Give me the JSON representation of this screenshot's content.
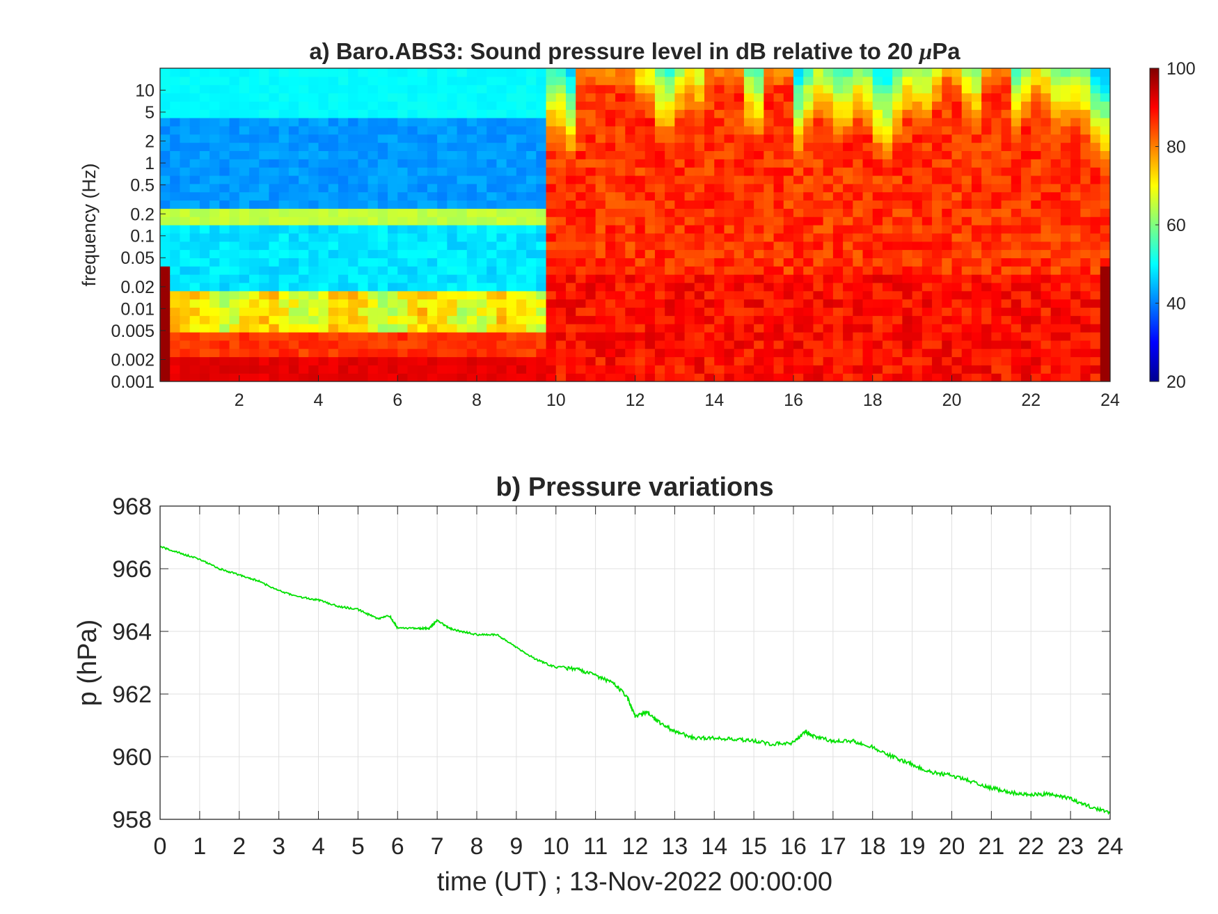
{
  "chart_data": [
    {
      "type": "heatmap",
      "title_prefix": "a) Baro.ABS3: Sound pressure level in dB relative to 20 ",
      "title_mu": "μ",
      "title_suffix": "Pa",
      "ylabel": "frequency (Hz)",
      "xlabel": "",
      "x_range": [
        0,
        24
      ],
      "y_scale": "log",
      "y_range": [
        0.001,
        20
      ],
      "x_ticks": [
        "2",
        "4",
        "6",
        "8",
        "10",
        "12",
        "14",
        "16",
        "18",
        "20",
        "22",
        "24"
      ],
      "x_tick_values": [
        2,
        4,
        6,
        8,
        10,
        12,
        14,
        16,
        18,
        20,
        22,
        24
      ],
      "y_ticks": [
        "10",
        "5",
        "2",
        "1",
        "0.5",
        "0.2",
        "0.1",
        "0.05",
        "0.02",
        "0.01",
        "0.005",
        "0.002",
        "0.001"
      ],
      "y_tick_values": [
        10,
        5,
        2,
        1,
        0.5,
        0.2,
        0.1,
        0.05,
        0.02,
        0.01,
        0.005,
        0.002,
        0.001
      ],
      "colorbar": {
        "range": [
          20,
          100
        ],
        "ticks": [
          "100",
          "80",
          "60",
          "40",
          "20"
        ],
        "tick_values": [
          100,
          80,
          60,
          40,
          20
        ],
        "colormap": "jet"
      },
      "pattern_summary": {
        "quiet_period_hours": [
          0,
          9.8
        ],
        "quiet_low_freq_band_db": 82,
        "quiet_mid_band_db": 52,
        "quiet_microbarom_band_hz": [
          0.15,
          0.25
        ],
        "quiet_microbarom_db": 65,
        "quiet_high_freq_db": 50,
        "windy_period_hours": [
          9.8,
          24
        ],
        "windy_level_db": 88
      }
    },
    {
      "type": "line",
      "title": "b) Pressure variations",
      "xlabel": "time (UT) ; 13-Nov-2022 00:00:00",
      "ylabel": "p (hPa)",
      "x_range": [
        0,
        24
      ],
      "ylim": [
        958,
        968
      ],
      "grid": true,
      "x_ticks": [
        "0",
        "1",
        "2",
        "3",
        "4",
        "5",
        "6",
        "7",
        "8",
        "9",
        "10",
        "11",
        "12",
        "13",
        "14",
        "15",
        "16",
        "17",
        "18",
        "19",
        "20",
        "21",
        "22",
        "23",
        "24"
      ],
      "y_ticks": [
        "968",
        "966",
        "964",
        "962",
        "960",
        "958"
      ],
      "y_tick_values": [
        968,
        966,
        964,
        962,
        960,
        958
      ],
      "line_color": "#00e000",
      "series": [
        {
          "x": [
            0,
            0.5,
            1,
            1.5,
            2,
            2.5,
            3,
            3.5,
            4,
            4.5,
            5,
            5.5,
            5.8,
            6,
            6.5,
            6.8,
            7,
            7.3,
            7.6,
            8,
            8.5,
            9,
            9.5,
            10,
            10.5,
            11,
            11.5,
            11.8,
            12,
            12.3,
            12.6,
            13,
            13.5,
            14,
            14.5,
            15,
            15.5,
            16,
            16.3,
            16.5,
            17,
            17.5,
            18,
            18.5,
            19,
            19.5,
            20,
            20.5,
            21,
            21.5,
            22,
            22.5,
            23,
            23.5,
            24
          ],
          "y": [
            966.7,
            966.5,
            966.3,
            966.0,
            965.8,
            965.6,
            965.3,
            965.1,
            965.0,
            964.8,
            964.7,
            964.4,
            964.5,
            964.1,
            964.1,
            964.1,
            964.35,
            964.1,
            964.0,
            963.9,
            963.9,
            963.5,
            963.1,
            962.85,
            962.8,
            962.6,
            962.3,
            961.9,
            961.3,
            961.4,
            961.1,
            960.8,
            960.6,
            960.6,
            960.55,
            960.5,
            960.4,
            960.45,
            960.8,
            960.65,
            960.5,
            960.5,
            960.3,
            960.0,
            959.75,
            959.5,
            959.4,
            959.2,
            959.0,
            958.85,
            958.8,
            958.8,
            958.65,
            958.4,
            958.2
          ]
        }
      ]
    }
  ]
}
